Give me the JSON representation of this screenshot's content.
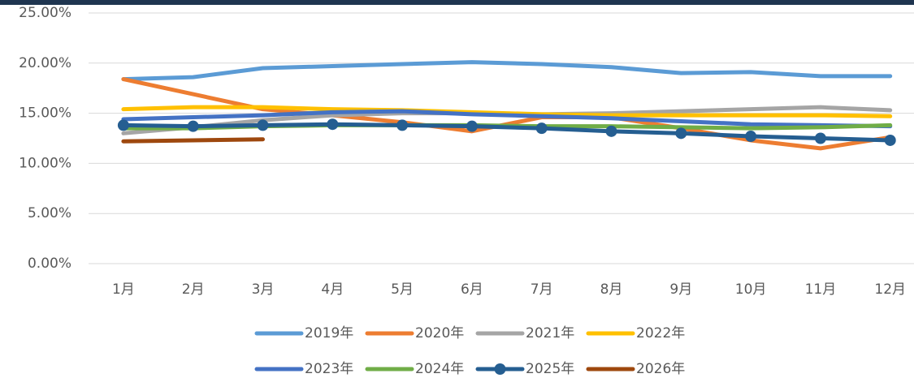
{
  "chart_data": {
    "type": "line",
    "categories": [
      "1月",
      "2月",
      "3月",
      "4月",
      "5月",
      "6月",
      "7月",
      "8月",
      "9月",
      "10月",
      "11月",
      "12月"
    ],
    "series": [
      {
        "name": "2019年",
        "color": "#5b9bd5",
        "values": [
          18.4,
          18.6,
          19.5,
          19.7,
          19.9,
          20.1,
          19.9,
          19.6,
          19.0,
          19.1,
          18.7,
          18.7
        ]
      },
      {
        "name": "2020年",
        "color": "#ed7d31",
        "values": [
          18.4,
          16.9,
          15.4,
          14.8,
          14.1,
          13.2,
          14.6,
          14.6,
          13.5,
          12.3,
          11.5,
          12.6
        ]
      },
      {
        "name": "2021年",
        "color": "#a5a5a5",
        "values": [
          13.0,
          13.6,
          14.3,
          14.8,
          15.0,
          15.0,
          14.9,
          15.0,
          15.2,
          15.4,
          15.6,
          15.3
        ]
      },
      {
        "name": "2022年",
        "color": "#ffc000",
        "values": [
          15.4,
          15.6,
          15.6,
          15.4,
          15.3,
          15.1,
          14.9,
          14.8,
          14.8,
          14.8,
          14.8,
          14.7
        ]
      },
      {
        "name": "2023年",
        "color": "#4472c4",
        "values": [
          14.4,
          14.6,
          14.8,
          15.1,
          15.2,
          14.9,
          14.7,
          14.5,
          14.2,
          13.9,
          13.8,
          13.7
        ]
      },
      {
        "name": "2024年",
        "color": "#70ad47",
        "values": [
          13.5,
          13.5,
          13.7,
          13.8,
          13.8,
          13.8,
          13.7,
          13.7,
          13.6,
          13.5,
          13.6,
          13.8
        ]
      },
      {
        "name": "2025年",
        "color": "#255e91",
        "markers": true,
        "values": [
          13.8,
          13.7,
          13.8,
          13.9,
          13.8,
          13.7,
          13.5,
          13.2,
          13.0,
          12.7,
          12.5,
          12.3
        ]
      },
      {
        "name": "2026年",
        "color": "#9e480e",
        "values": [
          12.2,
          12.3,
          12.4,
          null,
          null,
          null,
          null,
          null,
          null,
          null,
          null,
          null
        ]
      }
    ],
    "ylim": [
      0,
      25
    ],
    "yticks": [
      {
        "value": 0,
        "label": "0.00%"
      },
      {
        "value": 5,
        "label": "5.00%"
      },
      {
        "value": 10,
        "label": "10.00%"
      },
      {
        "value": 15,
        "label": "15.00%"
      },
      {
        "value": 20,
        "label": "20.00%"
      },
      {
        "value": 25,
        "label": "25.00%"
      }
    ],
    "grid": true
  }
}
